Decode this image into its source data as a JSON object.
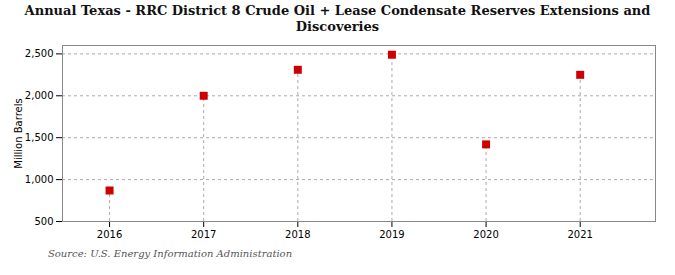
{
  "chart_data": {
    "type": "scatter",
    "title": "Annual Texas - RRC District 8 Crude Oil + Lease Condensate Reserves Extensions and\nDiscoveries",
    "ylabel": "Million Barrels",
    "source": "Source: U.S. Energy Information Administration",
    "x": [
      2016,
      2017,
      2018,
      2019,
      2020,
      2021
    ],
    "values": [
      870,
      2000,
      2310,
      2490,
      1420,
      2250
    ],
    "color": "#cc0000",
    "marker": "square",
    "xlim": [
      2015.5,
      2021.8
    ],
    "xticks": [
      2016,
      2017,
      2018,
      2019,
      2020,
      2021
    ],
    "ylim": [
      500,
      2600
    ],
    "yticks": [
      500,
      {
        "value": 1000,
        "label": "1,000"
      },
      {
        "value": 1500,
        "label": "1,500"
      },
      {
        "value": 2000,
        "label": "2,000"
      },
      {
        "value": 2500,
        "label": "2,500"
      }
    ],
    "grid": true
  }
}
